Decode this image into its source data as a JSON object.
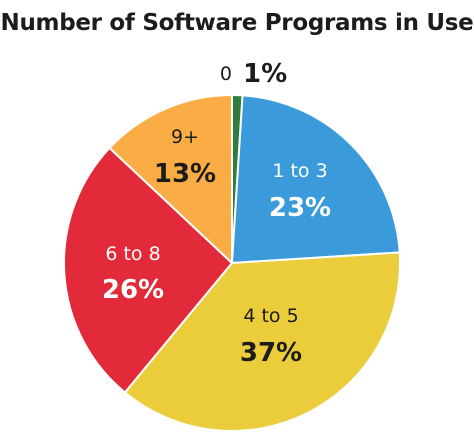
{
  "chart_data": {
    "type": "pie",
    "title": "Number of Software Programs in Use",
    "slices": [
      {
        "label": "0",
        "value": 1,
        "display": "1%",
        "color": "#2e7d3e"
      },
      {
        "label": "1 to 3",
        "value": 23,
        "display": "23%",
        "color": "#3b9ad9"
      },
      {
        "label": "4 to 5",
        "value": 37,
        "display": "37%",
        "color": "#ebcc3a"
      },
      {
        "label": "6 to 8",
        "value": 26,
        "display": "26%",
        "color": "#e22a3a"
      },
      {
        "label": "9+",
        "value": 13,
        "display": "13%",
        "color": "#fbad45"
      }
    ]
  }
}
